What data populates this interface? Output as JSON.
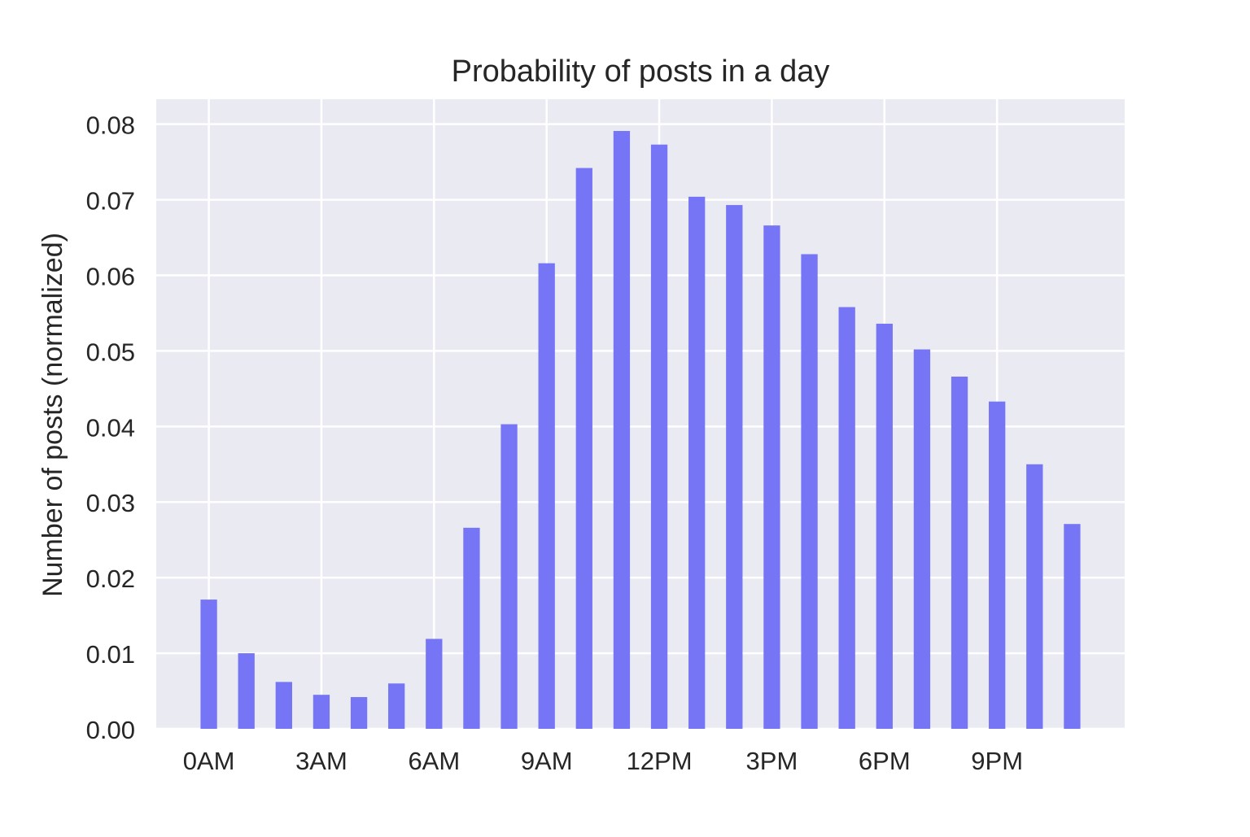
{
  "chart_data": {
    "type": "bar",
    "title": "Probability of posts in a day",
    "xlabel": "",
    "ylabel": "Number of posts (normalized)",
    "x": [
      0,
      1,
      2,
      3,
      4,
      5,
      6,
      7,
      8,
      9,
      10,
      11,
      12,
      13,
      14,
      15,
      16,
      17,
      18,
      19,
      20,
      21,
      22,
      23
    ],
    "values": [
      0.0171,
      0.01,
      0.0062,
      0.0045,
      0.0042,
      0.006,
      0.0119,
      0.0266,
      0.0403,
      0.0616,
      0.0742,
      0.0791,
      0.0773,
      0.0704,
      0.0693,
      0.0666,
      0.0628,
      0.0558,
      0.0536,
      0.0502,
      0.0466,
      0.0433,
      0.035,
      0.0271
    ],
    "xticks": [
      {
        "value": 0,
        "label": "0AM"
      },
      {
        "value": 3,
        "label": "3AM"
      },
      {
        "value": 6,
        "label": "6AM"
      },
      {
        "value": 9,
        "label": "9AM"
      },
      {
        "value": 12,
        "label": "12PM"
      },
      {
        "value": 15,
        "label": "3PM"
      },
      {
        "value": 18,
        "label": "6PM"
      },
      {
        "value": 21,
        "label": "9PM"
      }
    ],
    "yticks": [
      {
        "value": 0.0,
        "label": "0.00"
      },
      {
        "value": 0.01,
        "label": "0.01"
      },
      {
        "value": 0.02,
        "label": "0.02"
      },
      {
        "value": 0.03,
        "label": "0.03"
      },
      {
        "value": 0.04,
        "label": "0.04"
      },
      {
        "value": 0.05,
        "label": "0.05"
      },
      {
        "value": 0.06,
        "label": "0.06"
      },
      {
        "value": 0.07,
        "label": "0.07"
      },
      {
        "value": 0.08,
        "label": "0.08"
      }
    ],
    "xlim": [
      -1.4,
      24.4
    ],
    "ylim": [
      0,
      0.0833
    ],
    "grid": true,
    "bar_color": "#7575f5",
    "axes_background": "#eaeaf2",
    "grid_color": "#ffffff"
  }
}
